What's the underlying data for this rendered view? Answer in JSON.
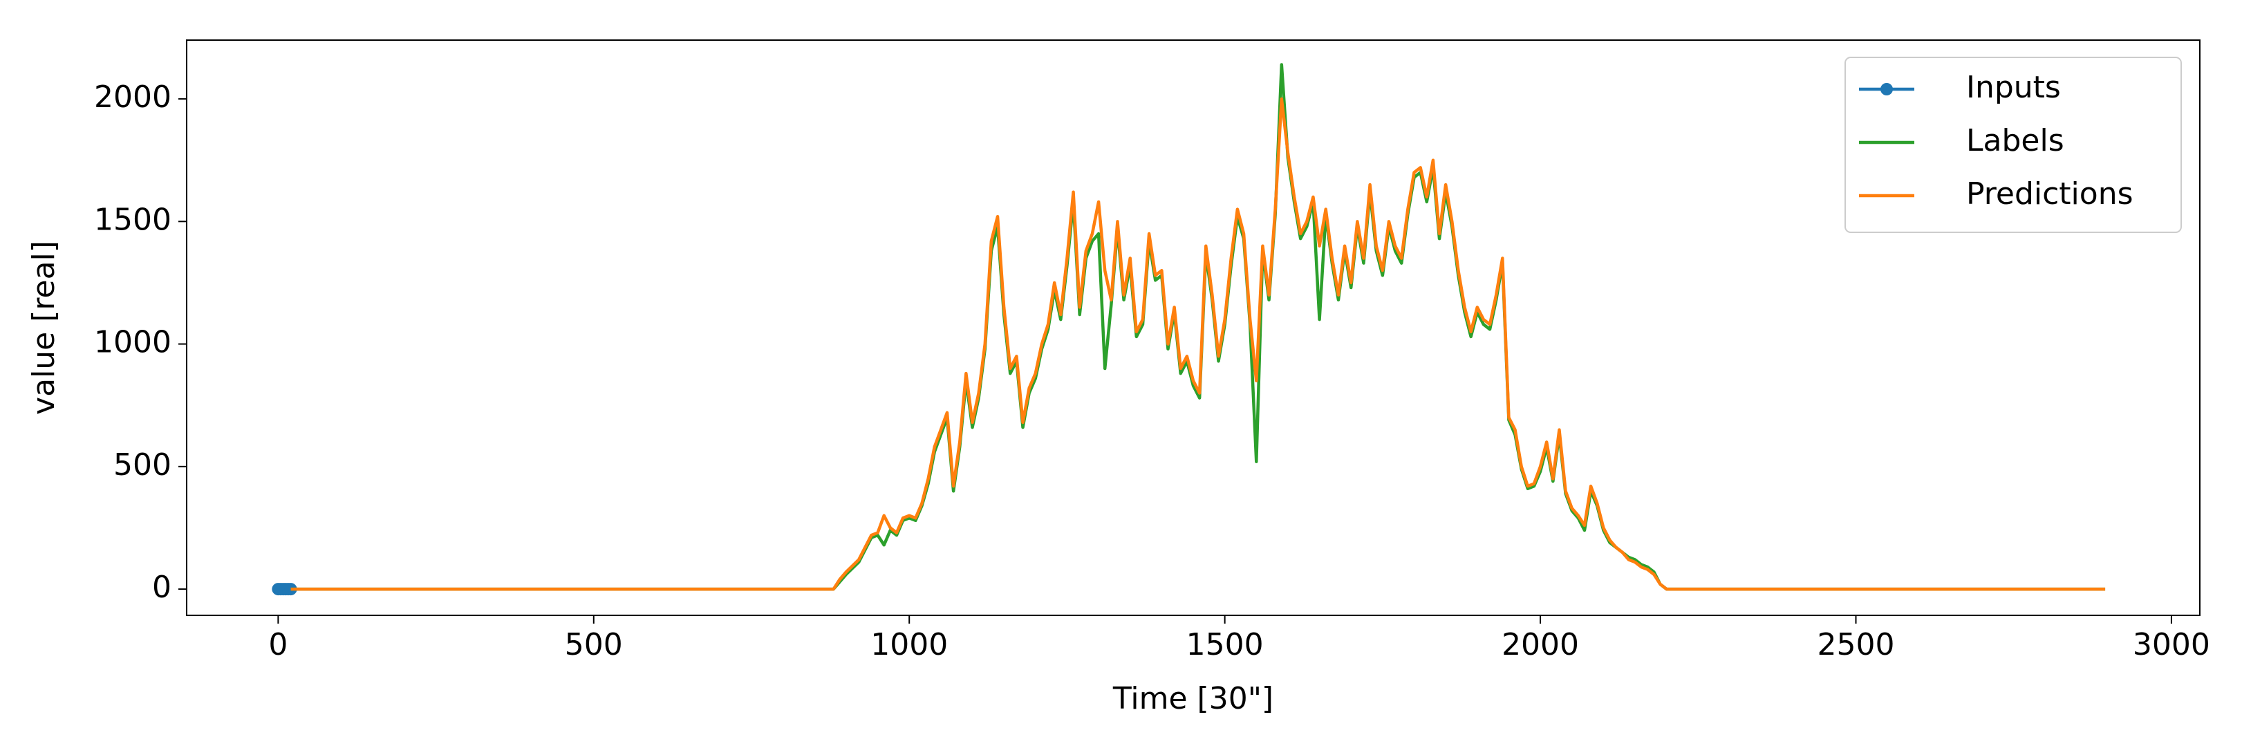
{
  "chart_data": {
    "type": "line",
    "x_label": "Time [30\"]",
    "y_label": "value [real]",
    "xlim": [
      -145,
      3045
    ],
    "ylim": [
      -107,
      2240
    ],
    "xticks": [
      0,
      500,
      1000,
      1500,
      2000,
      2500,
      3000
    ],
    "yticks": [
      0,
      500,
      1000,
      1500,
      2000
    ],
    "legend": "upper right",
    "series": [
      {
        "name": "Inputs",
        "color": "#1f77b4",
        "markers": true,
        "x": [
          0,
          4,
          8,
          12,
          16,
          20
        ],
        "values": [
          0,
          0,
          0,
          0,
          0,
          0
        ]
      },
      {
        "name": "Labels",
        "color": "#2ca02c",
        "markers": false,
        "x": [
          20,
          880,
          890,
          900,
          920,
          940,
          950,
          960,
          970,
          980,
          990,
          1000,
          1010,
          1020,
          1030,
          1040,
          1050,
          1060,
          1070,
          1080,
          1090,
          1100,
          1110,
          1120,
          1130,
          1140,
          1150,
          1160,
          1170,
          1180,
          1190,
          1200,
          1210,
          1220,
          1230,
          1240,
          1250,
          1260,
          1270,
          1280,
          1290,
          1300,
          1310,
          1320,
          1330,
          1340,
          1350,
          1360,
          1370,
          1380,
          1390,
          1400,
          1410,
          1420,
          1430,
          1440,
          1450,
          1460,
          1470,
          1480,
          1490,
          1500,
          1510,
          1520,
          1530,
          1540,
          1550,
          1560,
          1570,
          1580,
          1590,
          1600,
          1610,
          1620,
          1630,
          1640,
          1650,
          1660,
          1670,
          1680,
          1690,
          1700,
          1710,
          1720,
          1730,
          1740,
          1750,
          1760,
          1770,
          1780,
          1790,
          1800,
          1810,
          1820,
          1830,
          1840,
          1850,
          1860,
          1870,
          1880,
          1890,
          1900,
          1910,
          1920,
          1930,
          1940,
          1950,
          1960,
          1970,
          1980,
          1990,
          2000,
          2010,
          2020,
          2030,
          2040,
          2050,
          2060,
          2070,
          2080,
          2090,
          2100,
          2110,
          2120,
          2130,
          2140,
          2150,
          2160,
          2170,
          2180,
          2190,
          2200,
          2895
        ],
        "values": [
          0,
          0,
          30,
          60,
          110,
          210,
          220,
          180,
          240,
          220,
          280,
          290,
          280,
          340,
          430,
          560,
          630,
          700,
          400,
          580,
          850,
          660,
          780,
          980,
          1380,
          1480,
          1120,
          880,
          930,
          660,
          800,
          860,
          980,
          1060,
          1220,
          1100,
          1320,
          1580,
          1120,
          1350,
          1420,
          1450,
          900,
          1160,
          1470,
          1180,
          1320,
          1030,
          1080,
          1420,
          1260,
          1280,
          980,
          1130,
          880,
          930,
          830,
          780,
          1370,
          1180,
          930,
          1080,
          1320,
          1520,
          1430,
          1080,
          520,
          1380,
          1180,
          1530,
          2140,
          1760,
          1580,
          1430,
          1480,
          1580,
          1100,
          1530,
          1330,
          1180,
          1380,
          1230,
          1480,
          1330,
          1620,
          1380,
          1280,
          1480,
          1380,
          1330,
          1530,
          1680,
          1700,
          1580,
          1720,
          1430,
          1620,
          1480,
          1280,
          1130,
          1030,
          1130,
          1080,
          1060,
          1180,
          1330,
          690,
          630,
          490,
          410,
          420,
          480,
          580,
          440,
          630,
          390,
          320,
          290,
          240,
          400,
          340,
          240,
          190,
          170,
          150,
          130,
          120,
          100,
          90,
          70,
          20,
          0,
          0
        ]
      },
      {
        "name": "Predictions",
        "color": "#ff7f0e",
        "markers": false,
        "x": [
          20,
          880,
          890,
          900,
          920,
          940,
          950,
          960,
          970,
          980,
          990,
          1000,
          1010,
          1020,
          1030,
          1040,
          1050,
          1060,
          1070,
          1080,
          1090,
          1100,
          1110,
          1120,
          1130,
          1140,
          1150,
          1160,
          1170,
          1180,
          1190,
          1200,
          1210,
          1220,
          1230,
          1240,
          1250,
          1260,
          1270,
          1280,
          1290,
          1300,
          1310,
          1320,
          1330,
          1340,
          1350,
          1360,
          1370,
          1380,
          1390,
          1400,
          1410,
          1420,
          1430,
          1440,
          1450,
          1460,
          1470,
          1480,
          1490,
          1500,
          1510,
          1520,
          1530,
          1540,
          1550,
          1560,
          1570,
          1580,
          1590,
          1600,
          1610,
          1620,
          1630,
          1640,
          1650,
          1660,
          1670,
          1680,
          1690,
          1700,
          1710,
          1720,
          1730,
          1740,
          1750,
          1760,
          1770,
          1780,
          1790,
          1800,
          1810,
          1820,
          1830,
          1840,
          1850,
          1860,
          1870,
          1880,
          1890,
          1900,
          1910,
          1920,
          1930,
          1940,
          1950,
          1960,
          1970,
          1980,
          1990,
          2000,
          2010,
          2020,
          2030,
          2040,
          2050,
          2060,
          2070,
          2080,
          2090,
          2100,
          2110,
          2120,
          2130,
          2140,
          2150,
          2160,
          2170,
          2180,
          2190,
          2200,
          2895
        ],
        "values": [
          0,
          0,
          40,
          70,
          120,
          220,
          230,
          300,
          250,
          230,
          290,
          300,
          290,
          350,
          450,
          580,
          650,
          720,
          420,
          600,
          880,
          680,
          800,
          1000,
          1420,
          1520,
          1150,
          900,
          950,
          680,
          820,
          880,
          1000,
          1080,
          1250,
          1120,
          1350,
          1620,
          1150,
          1380,
          1450,
          1580,
          1300,
          1180,
          1500,
          1200,
          1350,
          1050,
          1100,
          1450,
          1280,
          1300,
          1000,
          1150,
          900,
          950,
          850,
          800,
          1400,
          1200,
          950,
          1100,
          1350,
          1550,
          1450,
          1100,
          850,
          1400,
          1200,
          1550,
          2000,
          1780,
          1600,
          1450,
          1500,
          1600,
          1400,
          1550,
          1350,
          1200,
          1400,
          1250,
          1500,
          1350,
          1650,
          1400,
          1300,
          1500,
          1400,
          1350,
          1550,
          1700,
          1720,
          1600,
          1750,
          1450,
          1650,
          1500,
          1300,
          1150,
          1050,
          1150,
          1100,
          1080,
          1200,
          1350,
          700,
          650,
          500,
          420,
          430,
          500,
          600,
          450,
          650,
          400,
          330,
          300,
          260,
          420,
          350,
          250,
          200,
          170,
          150,
          120,
          110,
          90,
          80,
          60,
          20,
          0,
          0
        ]
      }
    ]
  }
}
